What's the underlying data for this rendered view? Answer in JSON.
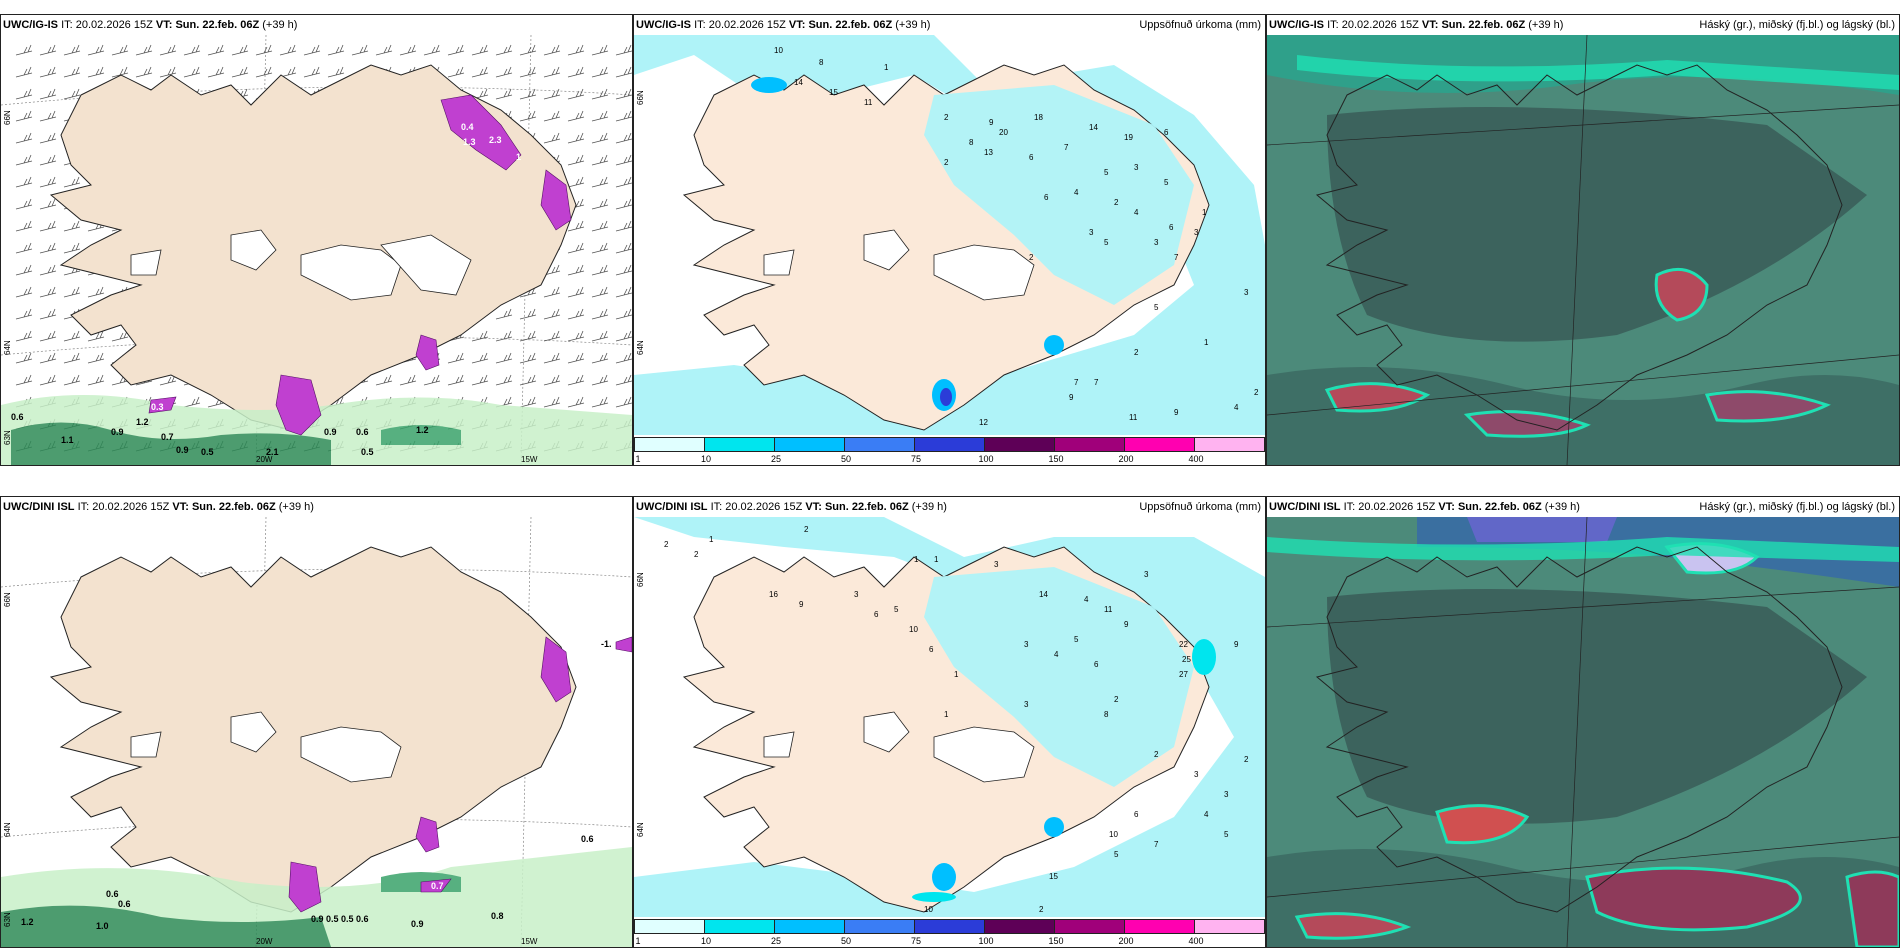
{
  "panels": [
    {
      "id": "top-left",
      "model": "UWC/IG-IS",
      "it_label": "IT:",
      "it_value": "20.02.2026 15Z",
      "vt_label": "VT:",
      "vt_value": "Sun. 22.feb. 06Z",
      "lead": "(+39 h)",
      "right_title": "",
      "lat_labels": [
        "66N",
        "64N",
        "63N"
      ],
      "lon_labels": [
        "20W",
        "15W"
      ],
      "values": [
        "0.4",
        "2.3",
        "1.3",
        "0.3",
        "0.6",
        "1.2",
        "0.9",
        "0.5",
        "0.6",
        "0.9",
        "0.9",
        "0.7",
        "0.5",
        "2.1",
        "1.1",
        "1.2",
        "1"
      ]
    },
    {
      "id": "top-middle",
      "model": "UWC/IG-IS",
      "it_label": "IT:",
      "it_value": "20.02.2026 15Z",
      "vt_label": "VT:",
      "vt_value": "Sun. 22.feb. 06Z",
      "lead": "(+39 h)",
      "right_title": "Uppsöfnuð úrkoma (mm)",
      "lat_labels": [
        "66N",
        "64N"
      ],
      "values": [
        "10",
        "8",
        "1",
        "14",
        "15",
        "11",
        "2",
        "8",
        "9",
        "18",
        "20",
        "13",
        "6",
        "7",
        "14",
        "19",
        "6",
        "2",
        "5",
        "4",
        "3",
        "5",
        "6",
        "2",
        "4",
        "3",
        "5",
        "2",
        "6",
        "3",
        "7",
        "1",
        "2",
        "3",
        "2",
        "7",
        "7",
        "9",
        "11",
        "12",
        "9",
        "4",
        "5",
        "3",
        "1"
      ]
    },
    {
      "id": "top-right",
      "model": "UWC/IG-IS",
      "it_label": "IT:",
      "it_value": "20.02.2026 15Z",
      "vt_label": "VT:",
      "vt_value": "Sun. 22.feb. 06Z",
      "lead": "(+39 h)",
      "right_title": "Háský (gr.), miðský (fj.bl.) og lágský (bl.)"
    },
    {
      "id": "bottom-left",
      "model": "UWC/DINI ISL",
      "it_label": "IT:",
      "it_value": "20.02.2026 15Z",
      "vt_label": "VT:",
      "vt_value": "Sun. 22.feb. 06Z",
      "lead": "(+39 h)",
      "right_title": "",
      "lat_labels": [
        "66N",
        "64N",
        "63N"
      ],
      "lon_labels": [
        "20W",
        "15W"
      ],
      "values": [
        "-1.",
        "0.6",
        "0.6",
        "0.7",
        "0.9",
        "0.5",
        "0.5",
        "0.6",
        "0.9",
        "0.8",
        "1.0",
        "1.2",
        "0.6"
      ]
    },
    {
      "id": "bottom-middle",
      "model": "UWC/DINI ISL",
      "it_label": "IT:",
      "it_value": "20.02.2026 15Z",
      "vt_label": "VT:",
      "vt_value": "Sun. 22.feb. 06Z",
      "lead": "(+39 h)",
      "right_title": "Uppsöfnuð úrkoma (mm)",
      "lat_labels": [
        "66N",
        "64N"
      ],
      "values": [
        "2",
        "1",
        "2",
        "2",
        "1",
        "16",
        "9",
        "3",
        "6",
        "1",
        "1",
        "3",
        "14",
        "4",
        "11",
        "9",
        "3",
        "22",
        "25",
        "27",
        "5",
        "9",
        "10",
        "6",
        "3",
        "4",
        "5",
        "6",
        "2",
        "1",
        "3",
        "8",
        "10",
        "6",
        "5",
        "2",
        "3",
        "4",
        "5",
        "15",
        "7",
        "10",
        "2",
        "2",
        "3"
      ]
    },
    {
      "id": "bottom-right",
      "model": "UWC/DINI ISL",
      "it_label": "IT:",
      "it_value": "20.02.2026 15Z",
      "vt_label": "VT:",
      "vt_value": "Sun. 22.feb. 06Z",
      "lead": "(+39 h)",
      "right_title": "Háský (gr.), miðský (fj.bl.) og lágský (bl.)"
    }
  ],
  "precip_legend": {
    "ticks": [
      "1",
      "10",
      "25",
      "50",
      "75",
      "100",
      "150",
      "200",
      "400"
    ],
    "colors": [
      "#e0ffff",
      "#00e5ee",
      "#00bfff",
      "#3a7df5",
      "#2b3cd8",
      "#5e0057",
      "#a0007a",
      "#ff00b0",
      "#ffb3f0"
    ]
  },
  "colors": {
    "land": "#f3e2cf",
    "precip_light": "#aff3f8",
    "cloud_base": "#4c8a7a",
    "cloud_dark": "#3b5e5a",
    "cloud_bright": "#1fe0b3",
    "cloud_red": "#b44a5a",
    "green_precip": "#2e8b57",
    "magenta_precip": "#c040d0"
  }
}
